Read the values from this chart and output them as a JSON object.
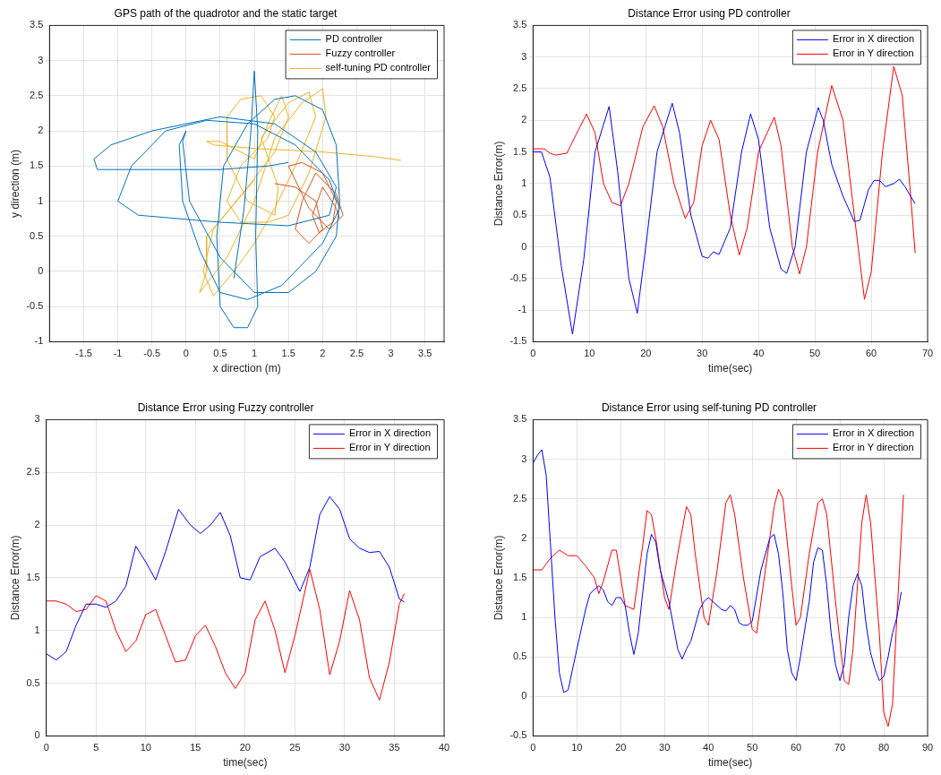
{
  "chart_data": [
    {
      "type": "line",
      "title": "GPS path of the quadrotor and the static target",
      "xlabel": "x direction (m)",
      "ylabel": "y direction (m)",
      "xlim": [
        -2,
        3.78
      ],
      "xticks": [
        -1.5,
        -1,
        -0.5,
        0,
        0.5,
        1,
        1.5,
        2,
        2.5,
        3,
        3.5
      ],
      "ylim": [
        -1,
        3.5
      ],
      "yticks": [
        -1,
        -0.5,
        0,
        0.5,
        1,
        1.5,
        2,
        2.5,
        3,
        3.5
      ],
      "grid": true,
      "legend": "top right",
      "marker": "none",
      "line_style": "solid",
      "series": [
        {
          "name": "PD controller",
          "color": "#0072bd",
          "x": [
            0.7,
            0.85,
            0.95,
            1.0,
            1.05,
            1.02,
            1.05,
            0.9,
            0.7,
            0.5,
            0.45,
            0.55,
            0.9,
            1.3,
            1.6,
            2.0,
            2.2,
            2.25,
            2.2,
            1.9,
            1.5,
            1.0,
            0.5,
            0.05,
            -0.05,
            0.0,
            -0.1,
            -0.05,
            0.2,
            0.5,
            0.9,
            1.4,
            2.0,
            2.25,
            2.1,
            1.6,
            1.0,
            0.3,
            -0.3,
            -0.8,
            -1.0,
            -0.7,
            0.5,
            1.5,
            2.1,
            2.2,
            1.9,
            1.3,
            0.5,
            -0.5,
            -1.1,
            -1.35,
            -1.3,
            -0.5,
            0.5,
            1.2,
            1.5
          ],
          "values": [
            -0.1,
            0.9,
            2.0,
            2.85,
            2.0,
            0.5,
            -0.5,
            -0.8,
            -0.8,
            -0.5,
            0.5,
            1.5,
            2.1,
            2.45,
            2.5,
            2.3,
            1.8,
            1.0,
            0.5,
            0.0,
            -0.3,
            -0.3,
            0.2,
            1.0,
            1.85,
            2.0,
            1.8,
            1.0,
            0.3,
            -0.3,
            -0.4,
            -0.2,
            0.4,
            0.9,
            1.3,
            1.8,
            2.1,
            2.15,
            2.0,
            1.5,
            1.0,
            0.8,
            0.7,
            0.65,
            0.8,
            1.2,
            1.7,
            2.1,
            2.2,
            2.0,
            1.8,
            1.6,
            1.45,
            1.45,
            1.45,
            1.5,
            1.55
          ]
        },
        {
          "name": "Fuzzy controller",
          "color": "#d95319",
          "x": [
            1.3,
            1.6,
            1.9,
            2.0,
            1.8,
            1.6,
            1.7,
            1.9,
            2.2,
            2.3,
            2.1,
            1.8,
            1.6,
            1.5,
            1.7,
            2.0,
            2.2,
            2.15,
            1.95,
            1.85,
            2.0,
            2.2,
            2.25
          ],
          "values": [
            1.25,
            1.2,
            1.0,
            0.6,
            0.4,
            0.6,
            1.0,
            1.4,
            1.1,
            0.8,
            0.6,
            0.9,
            1.3,
            1.5,
            1.55,
            1.4,
            1.0,
            0.7,
            0.55,
            0.8,
            1.2,
            0.9,
            0.75
          ]
        },
        {
          "name": "self-tuning PD controller",
          "color": "#edb120",
          "x": [
            1.0,
            0.3,
            0.3,
            0.2,
            0.6,
            1.0,
            1.3,
            1.7,
            2.0,
            2.05,
            1.8,
            1.5,
            1.2,
            0.8,
            0.6,
            0.8,
            1.2,
            1.3,
            1.1,
            0.8,
            0.6,
            0.6,
            0.9,
            1.3,
            1.35,
            1.1,
            1.5,
            1.8,
            1.9,
            1.6,
            1.3,
            1.0,
            0.7,
            0.4,
            0.25,
            0.4,
            0.9,
            1.3,
            1.5,
            1.4,
            1.2,
            1.0,
            0.5,
            0.3,
            0.4,
            1.0,
            2.0,
            2.8,
            3.15
          ],
          "values": [
            1.3,
            0.5,
            0.0,
            -0.3,
            0.2,
            1.0,
            1.9,
            2.4,
            2.6,
            2.2,
            1.4,
            0.8,
            0.7,
            0.7,
            1.0,
            1.5,
            1.9,
            2.2,
            2.5,
            2.45,
            2.2,
            1.6,
            1.0,
            0.8,
            1.2,
            1.9,
            2.4,
            2.55,
            2.2,
            1.5,
            0.9,
            0.4,
            0.0,
            -0.35,
            0.0,
            0.6,
            1.2,
            1.7,
            2.2,
            2.5,
            2.1,
            1.6,
            1.85,
            1.85,
            1.8,
            1.75,
            1.7,
            1.63,
            1.58
          ]
        }
      ]
    },
    {
      "type": "line",
      "title": "Distance Error using PD controller",
      "xlabel": "time(sec)",
      "ylabel": "Distance Error(m)",
      "xlim": [
        0,
        70
      ],
      "xticks": [
        0,
        10,
        20,
        30,
        40,
        50,
        60,
        70
      ],
      "ylim": [
        -1.5,
        3.5
      ],
      "yticks": [
        -1.5,
        -1,
        -0.5,
        0,
        0.5,
        1,
        1.5,
        2,
        2.5,
        3,
        3.5
      ],
      "grid": true,
      "legend": "top right",
      "marker": "none",
      "line_style": "solid",
      "series": [
        {
          "name": "Error in X direction",
          "color": "#0000ff",
          "x": [
            0,
            1.5,
            3,
            5,
            7,
            9,
            11,
            13.5,
            15,
            17,
            18.5,
            20,
            22,
            24.7,
            26,
            28,
            30,
            31,
            32,
            33,
            35,
            37,
            38.6,
            40,
            42,
            44,
            45,
            46.5,
            48.5,
            50.6,
            51.5,
            53,
            55,
            57,
            58,
            59.5,
            60.5,
            61.5,
            62.5,
            64,
            65,
            66,
            67.8
          ],
          "values": [
            1.5,
            1.5,
            1.1,
            -0.3,
            -1.38,
            -0.2,
            1.5,
            2.22,
            1.2,
            -0.5,
            -1.05,
            0,
            1.5,
            2.27,
            1.8,
            0.5,
            -0.15,
            -0.18,
            -0.08,
            -0.12,
            0.3,
            1.5,
            2.1,
            1.7,
            0.3,
            -0.35,
            -0.42,
            0,
            1.5,
            2.2,
            2,
            1.3,
            0.8,
            0.4,
            0.42,
            0.9,
            1.05,
            1.05,
            0.95,
            1,
            1.07,
            0.95,
            0.68
          ]
        },
        {
          "name": "Error in Y direction",
          "color": "#ff0000",
          "x": [
            0,
            2,
            3,
            4,
            6,
            7.5,
            9.5,
            11,
            12.5,
            14,
            15.5,
            17,
            19.5,
            21.5,
            23,
            25,
            27,
            28.5,
            30,
            31.5,
            33,
            35,
            36.6,
            38,
            40,
            42.8,
            44,
            46,
            47.3,
            48.5,
            50.5,
            53,
            55,
            57,
            58.8,
            60,
            62,
            64,
            65.5,
            67,
            67.8
          ],
          "values": [
            1.55,
            1.55,
            1.48,
            1.45,
            1.48,
            1.75,
            2.1,
            1.8,
            1,
            0.7,
            0.65,
            1,
            1.9,
            2.23,
            1.9,
            1,
            0.45,
            0.7,
            1.6,
            2,
            1.7,
            0.5,
            -0.13,
            0.3,
            1.5,
            2.05,
            1.6,
            0,
            -0.43,
            0,
            1.5,
            2.55,
            2,
            0.5,
            -0.83,
            -0.4,
            1.5,
            2.85,
            2.4,
            0.8,
            -0.1
          ]
        }
      ]
    },
    {
      "type": "line",
      "title": "Distance Error using Fuzzy controller",
      "xlabel": "time(sec)",
      "ylabel": "Distance Error(m)",
      "xlim": [
        0,
        40
      ],
      "xticks": [
        0,
        5,
        10,
        15,
        20,
        25,
        30,
        35,
        40
      ],
      "ylim": [
        0,
        3
      ],
      "yticks": [
        0,
        0.5,
        1,
        1.5,
        2,
        2.5,
        3
      ],
      "grid": true,
      "legend": "top right",
      "marker": "none",
      "line_style": "solid",
      "series": [
        {
          "name": "Error in X direction",
          "color": "#0000ff",
          "x": [
            0,
            1,
            2,
            3,
            4,
            5,
            6,
            7,
            8,
            9,
            10,
            11,
            12,
            13.3,
            14.5,
            15.5,
            16.5,
            17.5,
            18.5,
            19.5,
            20.5,
            21.5,
            23,
            24,
            25.5,
            26.5,
            27.5,
            28.5,
            29.5,
            30.5,
            31.5,
            32.5,
            33.5,
            34.5,
            35.5,
            36
          ],
          "values": [
            0.78,
            0.72,
            0.8,
            1.05,
            1.25,
            1.25,
            1.22,
            1.28,
            1.42,
            1.8,
            1.65,
            1.48,
            1.75,
            2.15,
            2,
            1.92,
            2,
            2.12,
            1.9,
            1.5,
            1.48,
            1.7,
            1.78,
            1.65,
            1.37,
            1.6,
            2.1,
            2.27,
            2.15,
            1.87,
            1.78,
            1.74,
            1.75,
            1.6,
            1.3,
            1.27
          ]
        },
        {
          "name": "Error in Y direction",
          "color": "#ff0000",
          "x": [
            0,
            1,
            2,
            3,
            4,
            5,
            6,
            7,
            8,
            9,
            10,
            11,
            12,
            13,
            14,
            15,
            16,
            17,
            18,
            19,
            20,
            21,
            22,
            23,
            24,
            25,
            26.5,
            27.5,
            28.5,
            29.5,
            30.5,
            31.5,
            32.5,
            33.5,
            34.5,
            35.5,
            36
          ],
          "values": [
            1.28,
            1.28,
            1.25,
            1.18,
            1.2,
            1.33,
            1.28,
            1,
            0.8,
            0.9,
            1.15,
            1.2,
            0.95,
            0.7,
            0.72,
            0.95,
            1.05,
            0.85,
            0.6,
            0.45,
            0.6,
            1.1,
            1.28,
            1,
            0.6,
            0.95,
            1.58,
            1.2,
            0.58,
            0.9,
            1.38,
            1.1,
            0.55,
            0.34,
            0.7,
            1.25,
            1.35
          ]
        }
      ]
    },
    {
      "type": "line",
      "title": "Distance Error using self-tuning PD controller",
      "xlabel": "time(sec)",
      "ylabel": "Distance Error(m)",
      "xlim": [
        0,
        90
      ],
      "xticks": [
        0,
        10,
        20,
        30,
        40,
        50,
        60,
        70,
        80,
        90
      ],
      "ylim": [
        -0.5,
        3.5
      ],
      "yticks": [
        -0.5,
        0,
        0.5,
        1,
        1.5,
        2,
        2.5,
        3,
        3.5
      ],
      "grid": true,
      "legend": "top right",
      "marker": "none",
      "line_style": "solid",
      "series": [
        {
          "name": "Error in X direction",
          "color": "#0000ff",
          "x": [
            0,
            1,
            2,
            3,
            5,
            6,
            7,
            8,
            10,
            12,
            13,
            14,
            15,
            16,
            17,
            18,
            19,
            20,
            21,
            22,
            23,
            24,
            26,
            27,
            28,
            29,
            31,
            33,
            34,
            35,
            36,
            38,
            39,
            40,
            41,
            42,
            43,
            44,
            45,
            46,
            47,
            48,
            49,
            50,
            52,
            54,
            55,
            56,
            57,
            58,
            59,
            60,
            61,
            63,
            64,
            65,
            66,
            67,
            68,
            69,
            70,
            71,
            72,
            73,
            74,
            75,
            76,
            77,
            78,
            79,
            80,
            81,
            82,
            83,
            84
          ],
          "values": [
            2.95,
            3.05,
            3.12,
            2.8,
            1,
            0.3,
            0.05,
            0.08,
            0.6,
            1.1,
            1.3,
            1.35,
            1.4,
            1.35,
            1.2,
            1.15,
            1.25,
            1.25,
            1.15,
            0.8,
            0.53,
            0.8,
            1.8,
            2.05,
            1.95,
            1.6,
            1.2,
            0.6,
            0.47,
            0.6,
            0.7,
            1.1,
            1.2,
            1.25,
            1.2,
            1.15,
            1.1,
            1.08,
            1.15,
            1.1,
            0.93,
            0.9,
            0.9,
            0.95,
            1.6,
            2,
            2.05,
            1.8,
            1.3,
            0.6,
            0.3,
            0.2,
            0.5,
            1.2,
            1.7,
            1.88,
            1.85,
            1.4,
            0.8,
            0.4,
            0.2,
            0.4,
            1,
            1.4,
            1.55,
            1.4,
            0.9,
            0.55,
            0.35,
            0.2,
            0.25,
            0.5,
            0.8,
            1,
            1.32
          ]
        },
        {
          "name": "Error in Y direction",
          "color": "#ff0000",
          "x": [
            0,
            2,
            4,
            6,
            8,
            10,
            12,
            14,
            15,
            16,
            18,
            19,
            20,
            21,
            23,
            25,
            26,
            27,
            28,
            30,
            31,
            33,
            35,
            36,
            37,
            39,
            40,
            42,
            44,
            45,
            46,
            48,
            50,
            51,
            53,
            55,
            56,
            57,
            59,
            60,
            61,
            63,
            65,
            66,
            67,
            69,
            71,
            72,
            73,
            75,
            76,
            77,
            79,
            80,
            81,
            82,
            83,
            84.5
          ],
          "values": [
            1.6,
            1.6,
            1.75,
            1.85,
            1.78,
            1.78,
            1.65,
            1.5,
            1.3,
            1.45,
            1.85,
            1.85,
            1.5,
            1.15,
            1.1,
            1.9,
            2.35,
            2.3,
            2,
            1.25,
            1.1,
            1.8,
            2.4,
            2.3,
            1.8,
            1,
            0.9,
            1.6,
            2.45,
            2.55,
            2.3,
            1.5,
            0.85,
            0.8,
            1.6,
            2.4,
            2.62,
            2.5,
            1.4,
            0.9,
            1,
            1.8,
            2.45,
            2.5,
            2.3,
            1.2,
            0.2,
            0.15,
            0.6,
            2.2,
            2.55,
            2.2,
            0.8,
            -0.2,
            -0.38,
            -0.1,
            1,
            2.55
          ]
        }
      ]
    }
  ]
}
